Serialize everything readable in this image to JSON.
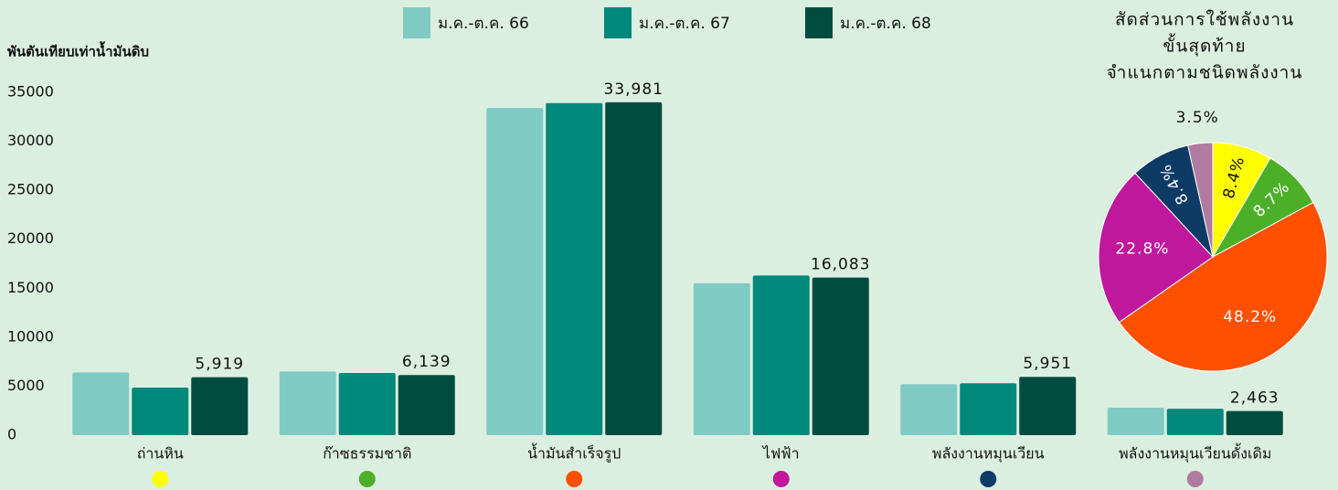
{
  "chart_data": [
    {
      "type": "bar",
      "y_label": "พันตันเทียบเท่าน้ำมันดิบ",
      "categories": [
        "ถ่านหิน",
        "ก๊าซธรรมชาติ",
        "น้ำมันสำเร็จรูป",
        "ไฟฟ้า",
        "พลังงานหมุนเวียน",
        "พลังงานหมุนเวียนดั้งเดิม"
      ],
      "category_colors": [
        "#ffff00",
        "#4caf28",
        "#ff5000",
        "#c0189c",
        "#0d3b66",
        "#b07aa1"
      ],
      "series": [
        {
          "name": "ม.ค.-ต.ค. 66",
          "color": "#7fcbc4",
          "values": [
            6400,
            6500,
            33400,
            15500,
            5200,
            2800
          ]
        },
        {
          "name": "ม.ค.-ต.ค. 67",
          "color": "#00897b",
          "values": [
            4850,
            6350,
            33900,
            16300,
            5300,
            2700
          ]
        },
        {
          "name": "ม.ค.-ต.ค. 68",
          "color": "#004d40",
          "values": [
            5919,
            6139,
            33981,
            16083,
            5951,
            2463
          ],
          "value_labels": [
            "5,919",
            "6,139",
            "33,981",
            "16,083",
            "5,951",
            "2,463"
          ]
        }
      ],
      "ylim": [
        0,
        35000
      ],
      "yticks": [
        0,
        5000,
        10000,
        15000,
        20000,
        25000,
        30000,
        35000
      ],
      "grid": false,
      "legend": "top"
    },
    {
      "type": "pie",
      "title": [
        "สัดส่วนการใช้พลังงาน",
        "ขั้นสุดท้าย",
        "จำแนกตามชนิดพลังงาน"
      ],
      "values": [
        8.4,
        8.7,
        48.2,
        22.8,
        8.4,
        3.5
      ],
      "value_labels": [
        "8.4%",
        "8.7%",
        "48.2%",
        "22.8%",
        "8.4%",
        "3.5%"
      ],
      "colors": [
        "#ffff00",
        "#4caf28",
        "#ff5000",
        "#c0189c",
        "#0d3b66",
        "#b07aa1"
      ]
    }
  ]
}
